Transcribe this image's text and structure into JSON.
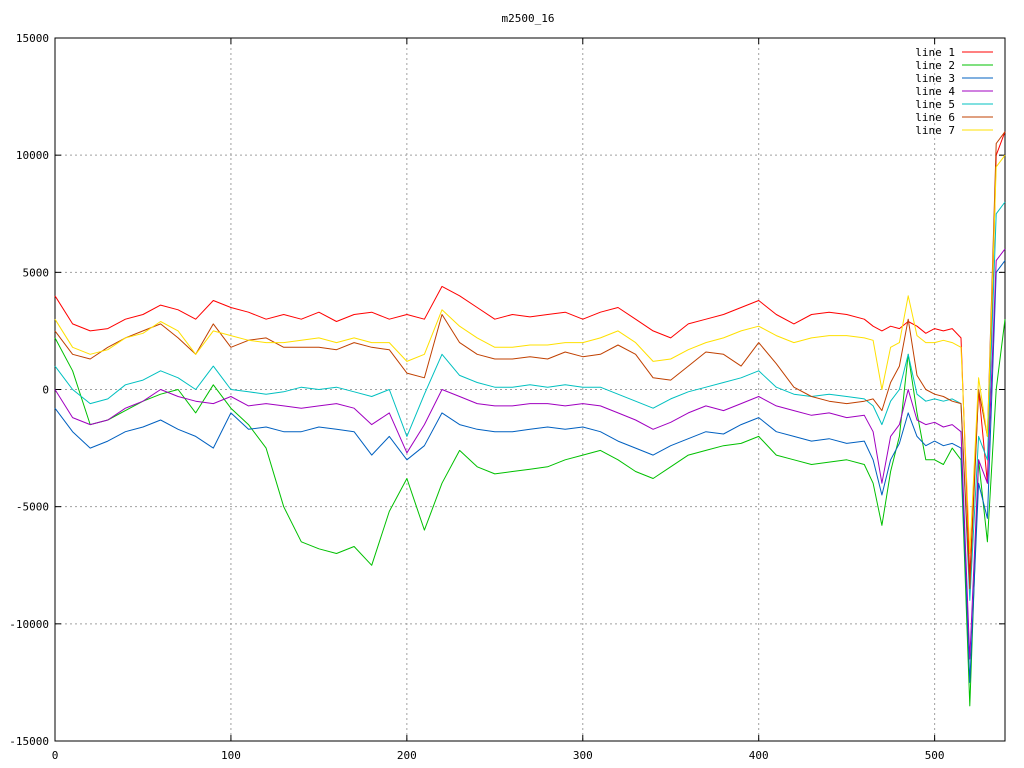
{
  "chart_data": {
    "type": "line",
    "title": "m2500_16",
    "xlabel": "",
    "ylabel": "",
    "xlim": [
      0,
      540
    ],
    "ylim": [
      -15000,
      15000
    ],
    "x_ticks": [
      0,
      100,
      200,
      300,
      400,
      500
    ],
    "y_ticks": [
      -15000,
      -10000,
      -5000,
      0,
      5000,
      10000,
      15000
    ],
    "x_tick_labels": [
      "0",
      "100",
      "200",
      "300",
      "400",
      "500"
    ],
    "y_tick_labels": [
      "-15000",
      "-10000",
      "-5000",
      "0",
      "5000",
      "10000",
      "15000"
    ],
    "grid": true,
    "legend_position": "top-right",
    "x": [
      0,
      10,
      20,
      30,
      40,
      50,
      60,
      70,
      80,
      90,
      100,
      110,
      120,
      130,
      140,
      150,
      160,
      170,
      180,
      190,
      200,
      210,
      220,
      230,
      240,
      250,
      260,
      270,
      280,
      290,
      300,
      310,
      320,
      330,
      340,
      350,
      360,
      370,
      380,
      390,
      400,
      410,
      420,
      430,
      440,
      450,
      460,
      465,
      470,
      475,
      480,
      485,
      490,
      495,
      500,
      505,
      510,
      515,
      520,
      525,
      530,
      535,
      540
    ],
    "series": [
      {
        "name": "line 1",
        "color": "#ff0000",
        "values": [
          4000,
          2800,
          2500,
          2600,
          3000,
          3200,
          3600,
          3400,
          3000,
          3800,
          3500,
          3300,
          3000,
          3200,
          3000,
          3300,
          2900,
          3200,
          3300,
          3000,
          3200,
          3000,
          4400,
          4000,
          3500,
          3000,
          3200,
          3100,
          3200,
          3300,
          3000,
          3300,
          3500,
          3000,
          2500,
          2200,
          2800,
          3000,
          3200,
          3500,
          3800,
          3200,
          2800,
          3200,
          3300,
          3200,
          3000,
          2700,
          2500,
          2700,
          2600,
          2900,
          2700,
          2400,
          2600,
          2500,
          2600,
          2200,
          -8000,
          0,
          -4000,
          10000,
          11000
        ]
      },
      {
        "name": "line 2",
        "color": "#00c000",
        "values": [
          2200,
          800,
          -1500,
          -1300,
          -900,
          -500,
          -200,
          0,
          -1000,
          200,
          -800,
          -1500,
          -2500,
          -5000,
          -6500,
          -6800,
          -7000,
          -6700,
          -7500,
          -5200,
          -3800,
          -6000,
          -4000,
          -2600,
          -3300,
          -3600,
          -3500,
          -3400,
          -3300,
          -3000,
          -2800,
          -2600,
          -3000,
          -3500,
          -3800,
          -3300,
          -2800,
          -2600,
          -2400,
          -2300,
          -2000,
          -2800,
          -3000,
          -3200,
          -3100,
          -3000,
          -3200,
          -4000,
          -5800,
          -3500,
          -2000,
          1500,
          -1000,
          -3000,
          -3000,
          -3200,
          -2500,
          -3000,
          -13500,
          -3000,
          -6500,
          0,
          3000
        ]
      },
      {
        "name": "line 3",
        "color": "#0060c0",
        "values": [
          -800,
          -1800,
          -2500,
          -2200,
          -1800,
          -1600,
          -1300,
          -1700,
          -2000,
          -2500,
          -1000,
          -1700,
          -1600,
          -1800,
          -1800,
          -1600,
          -1700,
          -1800,
          -2800,
          -2000,
          -3000,
          -2400,
          -1000,
          -1500,
          -1700,
          -1800,
          -1800,
          -1700,
          -1600,
          -1700,
          -1600,
          -1800,
          -2200,
          -2500,
          -2800,
          -2400,
          -2100,
          -1800,
          -1900,
          -1500,
          -1200,
          -1800,
          -2000,
          -2200,
          -2100,
          -2300,
          -2200,
          -3000,
          -4500,
          -3000,
          -2300,
          -1000,
          -2000,
          -2400,
          -2200,
          -2400,
          -2300,
          -2500,
          -12500,
          -4000,
          -5500,
          5000,
          5500
        ]
      },
      {
        "name": "line 4",
        "color": "#a000c0",
        "values": [
          0,
          -1200,
          -1500,
          -1300,
          -800,
          -500,
          0,
          -300,
          -500,
          -600,
          -300,
          -700,
          -600,
          -700,
          -800,
          -700,
          -600,
          -800,
          -1500,
          -1000,
          -2700,
          -1500,
          0,
          -300,
          -600,
          -700,
          -700,
          -600,
          -600,
          -700,
          -600,
          -700,
          -1000,
          -1300,
          -1700,
          -1400,
          -1000,
          -700,
          -900,
          -600,
          -300,
          -700,
          -900,
          -1100,
          -1000,
          -1200,
          -1100,
          -1800,
          -4000,
          -2000,
          -1500,
          0,
          -1300,
          -1500,
          -1400,
          -1600,
          -1500,
          -1800,
          -11500,
          -3000,
          -4000,
          5500,
          6000
        ]
      },
      {
        "name": "line 5",
        "color": "#00c0c0",
        "values": [
          1000,
          0,
          -600,
          -400,
          200,
          400,
          800,
          500,
          0,
          1000,
          0,
          -100,
          -200,
          -100,
          100,
          0,
          100,
          -100,
          -300,
          0,
          -2000,
          -200,
          1500,
          600,
          300,
          100,
          100,
          200,
          100,
          200,
          100,
          100,
          -200,
          -500,
          -800,
          -400,
          -100,
          100,
          300,
          500,
          800,
          100,
          -200,
          -300,
          -200,
          -300,
          -400,
          -700,
          -1500,
          -500,
          0,
          1500,
          -200,
          -500,
          -400,
          -500,
          -400,
          -600,
          -9000,
          -2000,
          -3000,
          7500,
          8000
        ]
      },
      {
        "name": "line 6",
        "color": "#c04000",
        "values": [
          2500,
          1500,
          1300,
          1800,
          2200,
          2500,
          2800,
          2200,
          1500,
          2800,
          1800,
          2100,
          2200,
          1800,
          1800,
          1800,
          1700,
          2000,
          1800,
          1700,
          700,
          500,
          3200,
          2000,
          1500,
          1300,
          1300,
          1400,
          1300,
          1600,
          1400,
          1500,
          1900,
          1500,
          500,
          400,
          1000,
          1600,
          1500,
          1000,
          2000,
          1100,
          100,
          -300,
          -500,
          -600,
          -500,
          -400,
          -900,
          300,
          1000,
          3000,
          600,
          0,
          -200,
          -300,
          -500,
          -600,
          -8500,
          0,
          -2000,
          10500,
          11000
        ]
      },
      {
        "name": "line 7",
        "color": "#ffe000",
        "values": [
          3000,
          1800,
          1500,
          1700,
          2200,
          2400,
          2900,
          2500,
          1500,
          2500,
          2300,
          2100,
          2000,
          2000,
          2100,
          2200,
          2000,
          2200,
          2000,
          2000,
          1200,
          1500,
          3400,
          2700,
          2200,
          1800,
          1800,
          1900,
          1900,
          2000,
          2000,
          2200,
          2500,
          2000,
          1200,
          1300,
          1700,
          2000,
          2200,
          2500,
          2700,
          2300,
          2000,
          2200,
          2300,
          2300,
          2200,
          2100,
          0,
          1800,
          2000,
          4000,
          2300,
          2000,
          2000,
          2100,
          2000,
          1800,
          -7000,
          500,
          -2000,
          9500,
          10000
        ]
      }
    ]
  }
}
